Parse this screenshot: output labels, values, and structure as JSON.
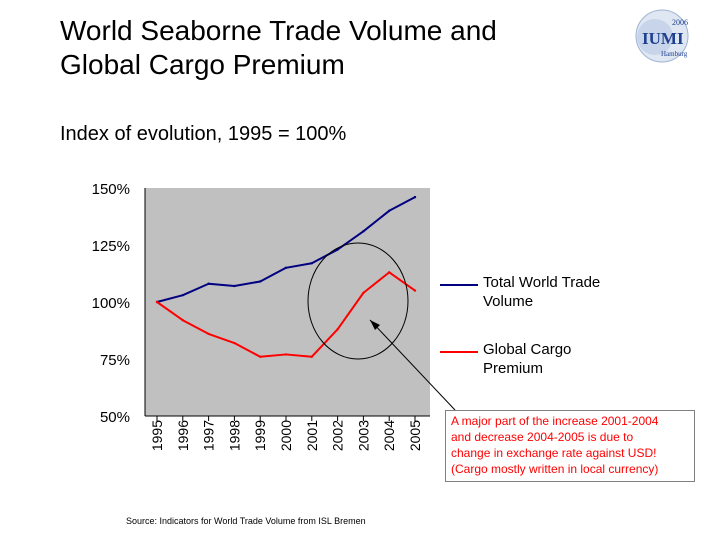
{
  "slide": {
    "title_lines": [
      "World Seaborne Trade Volume and",
      "Global Cargo Premium"
    ],
    "subtitle": "Index of evolution, 1995 = 100%",
    "logo_text": [
      "2006",
      "IUMI",
      "Hamburg"
    ],
    "source": "Source: Indicators for World Trade Volume from ISL Bremen"
  },
  "annotation": {
    "lines": [
      "A major part of the increase 2001-2004",
      "and decrease 2004-2005 is due to",
      "change in exchange rate against USD!",
      "(Cargo mostly written in local currency)"
    ],
    "color": "#ff0000"
  },
  "colors": {
    "plot_bg": "#c0c0c0",
    "trade": "#000080",
    "premium": "#ff0000"
  },
  "chart_data": {
    "type": "line",
    "x": [
      "1995",
      "1996",
      "1997",
      "1998",
      "1999",
      "2000",
      "2001",
      "2002",
      "2003",
      "2004",
      "2005"
    ],
    "series": [
      {
        "name": "Total World Trade Volume",
        "legend_lines": [
          "Total World Trade",
          "Volume"
        ],
        "color": "#000080",
        "values": [
          100,
          103,
          108,
          107,
          109,
          115,
          117,
          123,
          131,
          140,
          146
        ]
      },
      {
        "name": "Global Cargo Premium",
        "legend_lines": [
          "Global Cargo",
          "Premium"
        ],
        "color": "#ff0000",
        "values": [
          100,
          92,
          86,
          82,
          76,
          77,
          76,
          88,
          104,
          113,
          105
        ]
      }
    ],
    "yticks": [
      "50%",
      "75%",
      "100%",
      "125%",
      "150%"
    ],
    "ylim": [
      50,
      150
    ],
    "grid": false,
    "legend": "right",
    "annotation_circle_center": {
      "x": "2002",
      "y": 100
    }
  }
}
